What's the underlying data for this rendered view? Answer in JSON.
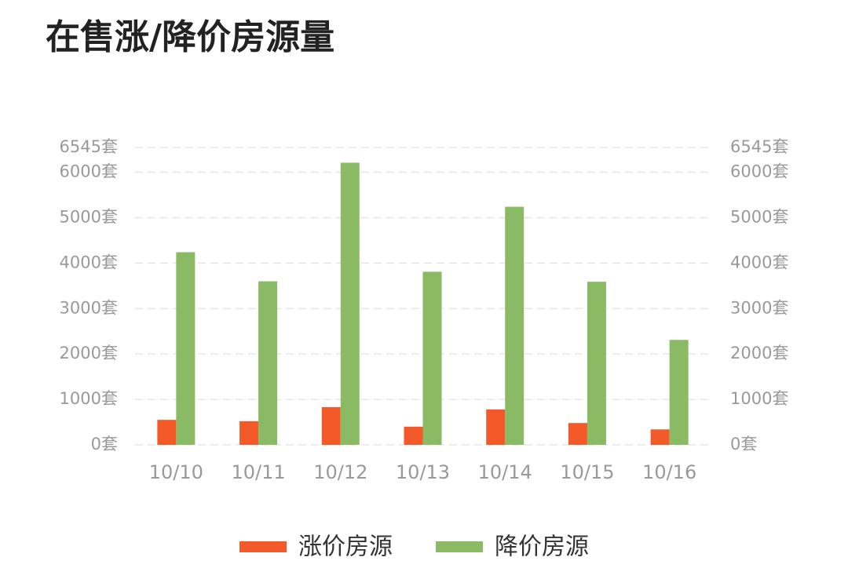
{
  "chart_data": {
    "type": "bar",
    "title": "在售涨/降价房源量",
    "categories": [
      "10/10",
      "10/11",
      "10/12",
      "10/13",
      "10/14",
      "10/15",
      "10/16"
    ],
    "series": [
      {
        "name": "涨价房源",
        "color": "#f4592a",
        "values": [
          550,
          520,
          830,
          400,
          780,
          480,
          340
        ]
      },
      {
        "name": "降价房源",
        "color": "#8aba63",
        "axis": "y2",
        "values": [
          4240,
          3600,
          6210,
          3810,
          5240,
          3590,
          2310
        ]
      }
    ],
    "ylim": [
      0,
      6545
    ],
    "yticks": [
      {
        "value": 0,
        "label": "0套"
      },
      {
        "value": 1000,
        "label": "1000套"
      },
      {
        "value": 2000,
        "label": "2000套"
      },
      {
        "value": 3000,
        "label": "3000套"
      },
      {
        "value": 4000,
        "label": "4000套"
      },
      {
        "value": 5000,
        "label": "5000套"
      },
      {
        "value": 6000,
        "label": "6000套"
      },
      {
        "value": 6545,
        "label": "6545套"
      }
    ],
    "y2lim": [
      0,
      6545
    ],
    "y2ticks": [
      {
        "value": 0,
        "label": "0套"
      },
      {
        "value": 1000,
        "label": "1000套"
      },
      {
        "value": 2000,
        "label": "2000套"
      },
      {
        "value": 3000,
        "label": "3000套"
      },
      {
        "value": 4000,
        "label": "4000套"
      },
      {
        "value": 5000,
        "label": "5000套"
      },
      {
        "value": 6000,
        "label": "6000套"
      },
      {
        "value": 6545,
        "label": "6545套"
      }
    ],
    "grid": true,
    "legend": "bottom"
  }
}
